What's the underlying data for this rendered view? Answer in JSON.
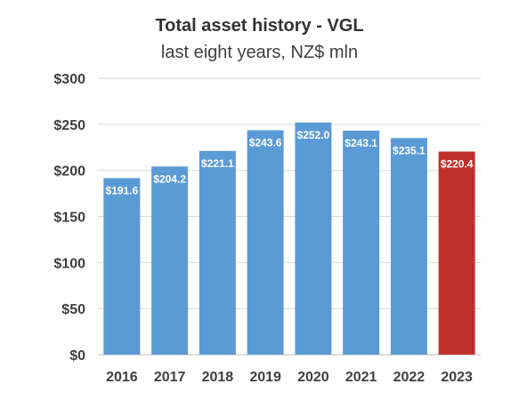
{
  "chart_data": {
    "type": "bar",
    "title": "Total asset history - VGL",
    "subtitle": "last eight years, NZ$ mln",
    "categories": [
      "2016",
      "2017",
      "2018",
      "2019",
      "2020",
      "2021",
      "2022",
      "2023"
    ],
    "values": [
      191.6,
      204.2,
      221.1,
      243.6,
      252.0,
      243.1,
      235.1,
      220.4
    ],
    "data_labels": [
      "$191.6",
      "$204.2",
      "$221.1",
      "$243.6",
      "$252.0",
      "$243.1",
      "$235.1",
      "$220.4"
    ],
    "y_ticks": [
      0,
      50,
      100,
      150,
      200,
      250,
      300
    ],
    "y_tick_labels": [
      "$0",
      "$50",
      "$100",
      "$150",
      "$200",
      "$250",
      "$300"
    ],
    "ylim": [
      0,
      300
    ],
    "grid": true,
    "legend": "none",
    "colors": {
      "bar": "#5b9bd5",
      "highlight": "#c0302b",
      "grid": "#d9d9d9"
    },
    "highlight_index": 7
  }
}
